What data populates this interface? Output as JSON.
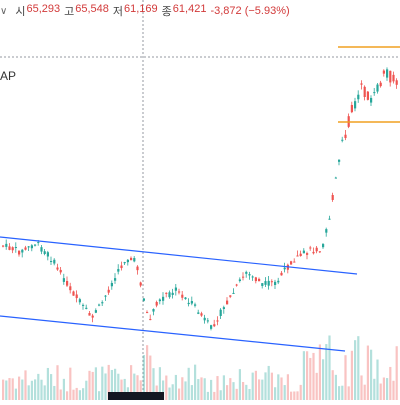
{
  "header": {
    "toggle_glyph": "∨",
    "open": {
      "key": "시",
      "value": "65,293"
    },
    "high": {
      "key": "고",
      "value": "65,548"
    },
    "low": {
      "key": "저",
      "value": "61,169"
    },
    "close": {
      "key": "종",
      "value": "61,421"
    },
    "change": "-3,872 (−5.93%)"
  },
  "symbol_fragment": "AP",
  "colors": {
    "up": "#26a69a",
    "down": "#ef5350",
    "trendline": "#2962ff",
    "hline": "#f0a020",
    "crosshair": "#9598a1"
  },
  "icons": [
    "chevron-down-icon"
  ]
}
